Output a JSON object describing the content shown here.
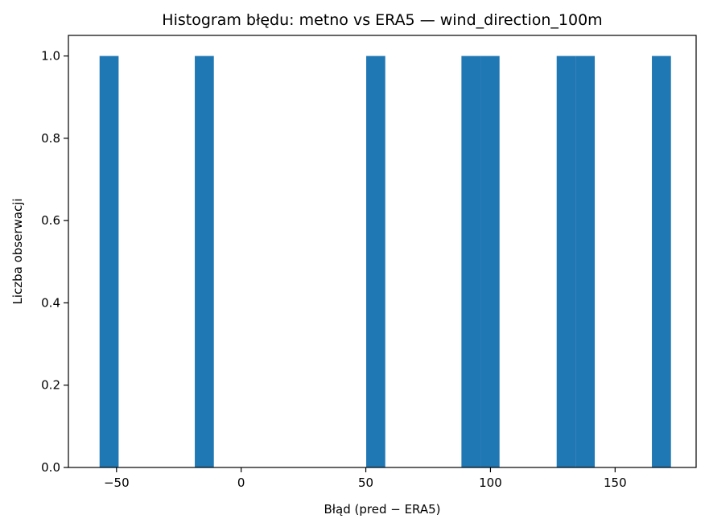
{
  "chart_data": {
    "type": "bar",
    "title": "Histogram błędu: metno vs ERA5 — wind_direction_100m",
    "xlabel": "Błąd (pred − ERA5)",
    "ylabel": "Liczba obserwacji",
    "xlim": [
      -69.3,
      182.5
    ],
    "ylim": [
      0,
      1.05
    ],
    "bin_width": 7.64,
    "bins": [
      {
        "start": -56.8,
        "end": -49.16,
        "count": 1
      },
      {
        "start": -18.6,
        "end": -10.96,
        "count": 1
      },
      {
        "start": 50.16,
        "end": 57.8,
        "count": 1
      },
      {
        "start": 88.36,
        "end": 96.0,
        "count": 1
      },
      {
        "start": 96.0,
        "end": 103.64,
        "count": 1
      },
      {
        "start": 126.56,
        "end": 134.2,
        "count": 1
      },
      {
        "start": 134.2,
        "end": 141.84,
        "count": 1
      },
      {
        "start": 164.76,
        "end": 172.4,
        "count": 1
      }
    ],
    "xticks": [
      -50,
      0,
      50,
      100,
      150
    ],
    "yticks": [
      0.0,
      0.2,
      0.4,
      0.6,
      0.8,
      1.0
    ],
    "grid": false,
    "colors": {
      "bar": "#1f77b4",
      "axes": "#000000"
    }
  }
}
